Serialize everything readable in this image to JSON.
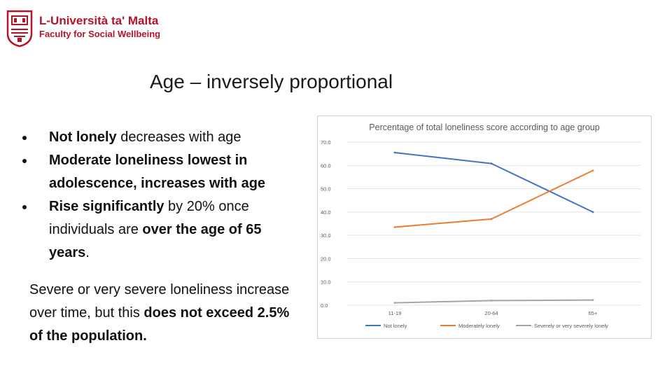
{
  "header": {
    "university": "L-Università ta' Malta",
    "faculty": "Faculty for Social Wellbeing"
  },
  "slide": {
    "title": "Age – inversely proportional",
    "bullets": [
      {
        "bold": "Not lonely",
        "rest": " decreases with age"
      },
      {
        "bold": "Moderate loneliness  lowest in adolescence, increases with age",
        "rest": ""
      },
      {
        "bold": "Rise significantly",
        "rest": " by 20% once individuals are ",
        "bold2": "over the age of 65 years",
        "tail": "."
      }
    ],
    "paragraph": {
      "text1": "Severe or very severe loneliness increase over time, but this ",
      "bold": "does not exceed 2.5% of the population."
    }
  },
  "colors": {
    "brand": "#b3142a",
    "not_lonely": "#4472c4",
    "moderately_lonely": "#ed7d31",
    "severely_lonely": "#a5a5a5"
  },
  "chart_data": {
    "type": "line",
    "title": "Percentage of total loneliness score according to age group",
    "categories": [
      "11-19",
      "20-64",
      "65+"
    ],
    "series": [
      {
        "name": "Not lonely",
        "values": [
          65.5,
          60.8,
          40.0
        ]
      },
      {
        "name": "Moderately lonely",
        "values": [
          33.5,
          37.0,
          57.8
        ]
      },
      {
        "name": "Severely or very severely lonely",
        "values": [
          1.0,
          2.0,
          2.2
        ]
      }
    ],
    "y_ticks": [
      "0.0",
      "10.0",
      "20.0",
      "30.0",
      "40.0",
      "50.0",
      "60.0",
      "70.0"
    ],
    "ylim": [
      0,
      70
    ],
    "grid": true,
    "legend": "bottom"
  }
}
